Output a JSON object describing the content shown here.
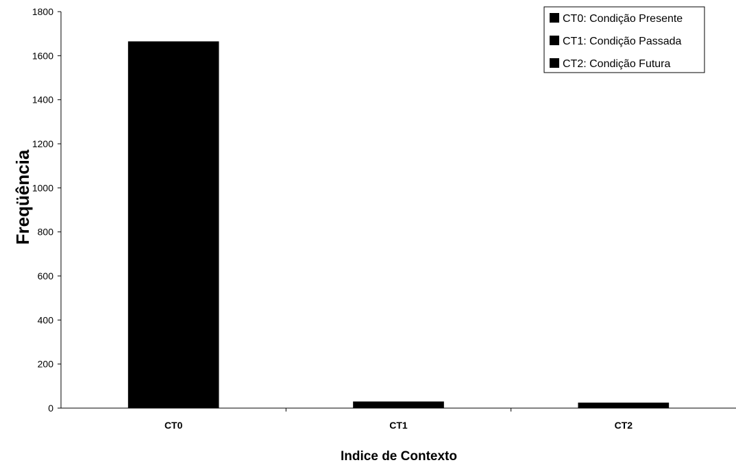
{
  "chart_data": {
    "type": "bar",
    "categories": [
      "CT0",
      "CT1",
      "CT2"
    ],
    "values": [
      1665,
      30,
      25
    ],
    "ylabel": "Freqüência",
    "xlabel": "Indice de Contexto",
    "ylim": [
      0,
      1800
    ],
    "yticks": [
      0,
      200,
      400,
      600,
      800,
      1000,
      1200,
      1400,
      1600,
      1800
    ],
    "grid": false,
    "legend": {
      "placement": "top-right",
      "entries": [
        "CT0: Condição Presente",
        "CT1: Condição Passada",
        "CT2: Condição Futura"
      ]
    },
    "colors": {
      "bar": "#000000",
      "axis": "#000000",
      "background": "#ffffff"
    }
  }
}
